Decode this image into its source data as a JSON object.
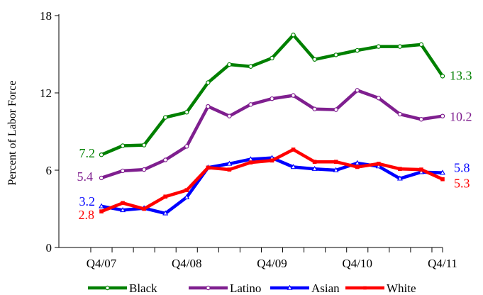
{
  "chart_data": {
    "type": "line",
    "title": "",
    "xlabel": "",
    "ylabel": "Percent of Labor Force",
    "ylim": [
      0,
      18
    ],
    "yticks": [
      0,
      6,
      12,
      18
    ],
    "x": [
      "Q4/07",
      "Q1/08",
      "Q2/08",
      "Q3/08",
      "Q4/08",
      "Q1/09",
      "Q2/09",
      "Q3/09",
      "Q4/09",
      "Q1/10",
      "Q2/10",
      "Q3/10",
      "Q4/10",
      "Q1/11",
      "Q2/11",
      "Q3/11",
      "Q4/11"
    ],
    "xticks": [
      "Q4/07",
      "Q4/08",
      "Q4/09",
      "Q4/10",
      "Q4/11"
    ],
    "grid": false,
    "legend_position": "bottom",
    "series": [
      {
        "name": "Black",
        "color": "#008000",
        "marker": "circle",
        "values": [
          7.2,
          7.9,
          7.95,
          10.1,
          10.5,
          12.8,
          14.2,
          14.05,
          14.7,
          16.5,
          14.6,
          14.95,
          15.3,
          15.6,
          15.6,
          15.75,
          13.3
        ],
        "start_label": "7.2",
        "end_label": "13.3"
      },
      {
        "name": "Latino",
        "color": "#7f1f8f",
        "marker": "circle",
        "values": [
          5.4,
          5.95,
          6.05,
          6.8,
          7.85,
          10.95,
          10.2,
          11.1,
          11.55,
          11.8,
          10.75,
          10.7,
          12.2,
          11.6,
          10.35,
          9.95,
          10.2
        ],
        "start_label": "5.4",
        "end_label": "10.2"
      },
      {
        "name": "Asian",
        "color": "#0000ff",
        "marker": "triangle",
        "values": [
          3.2,
          2.9,
          3.05,
          2.65,
          3.9,
          6.2,
          6.5,
          6.85,
          6.95,
          6.25,
          6.1,
          6.0,
          6.55,
          6.3,
          5.35,
          5.85,
          5.8
        ],
        "start_label": "3.2",
        "end_label": "5.8"
      },
      {
        "name": "White",
        "color": "#ff0000",
        "marker": "square",
        "values": [
          2.8,
          3.45,
          3.0,
          3.95,
          4.45,
          6.2,
          6.05,
          6.6,
          6.75,
          7.6,
          6.65,
          6.65,
          6.25,
          6.5,
          6.1,
          6.05,
          5.3
        ],
        "start_label": "2.8",
        "end_label": "5.3"
      }
    ]
  }
}
